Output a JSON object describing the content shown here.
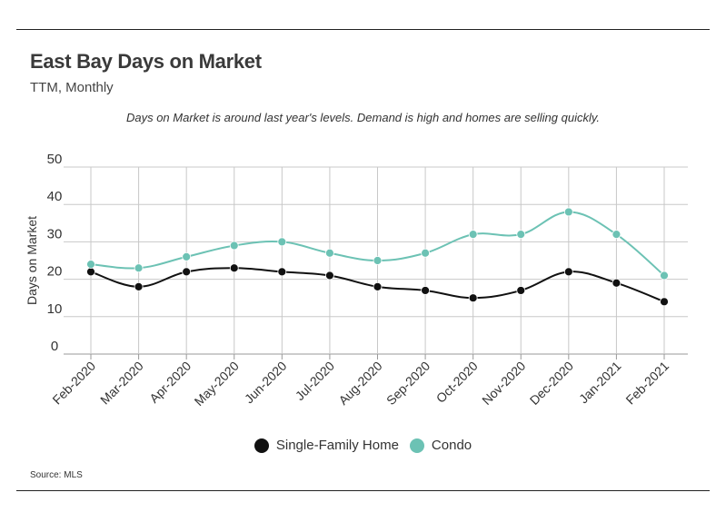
{
  "title": "East Bay Days on Market",
  "subtitle": "TTM, Monthly",
  "note": "Days on Market is around last year's levels. Demand is high and homes are selling quickly.",
  "source": "Source:  MLS",
  "chart_data": {
    "type": "line",
    "ylabel": "Days on Market",
    "xlabel": "",
    "ylim": [
      0,
      50
    ],
    "yticks": [
      0,
      10,
      20,
      30,
      40,
      50
    ],
    "grid": true,
    "legend_position": "bottom",
    "categories": [
      "Feb-2020",
      "Mar-2020",
      "Apr-2020",
      "May-2020",
      "Jun-2020",
      "Jul-2020",
      "Aug-2020",
      "Sep-2020",
      "Oct-2020",
      "Nov-2020",
      "Dec-2020",
      "Jan-2021",
      "Feb-2021"
    ],
    "series": [
      {
        "name": "Single-Family Home",
        "color": "#111111",
        "values": [
          22,
          18,
          22,
          23,
          22,
          21,
          18,
          17,
          15,
          17,
          22,
          19,
          14
        ]
      },
      {
        "name": "Condo",
        "color": "#6cc2b4",
        "values": [
          24,
          23,
          26,
          29,
          30,
          27,
          25,
          27,
          32,
          32,
          38,
          32,
          21
        ]
      }
    ]
  }
}
